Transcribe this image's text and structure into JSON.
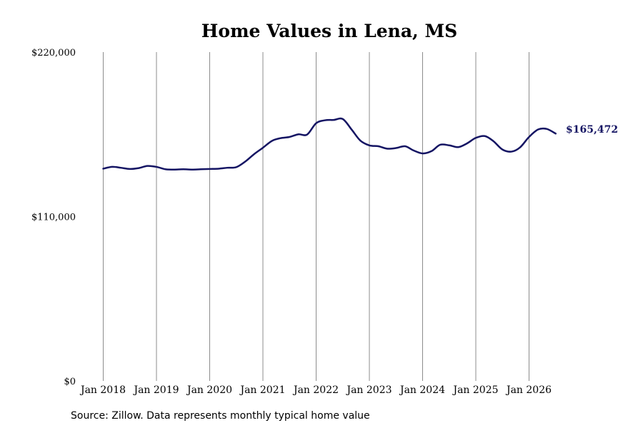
{
  "chart_data": {
    "type": "line",
    "title": "Home Values in Lena, MS",
    "xlabel": "",
    "ylabel": "",
    "ylim": [
      0,
      220000
    ],
    "y_ticks": [
      {
        "value": 0,
        "label": "$0"
      },
      {
        "value": 110000,
        "label": "$110,000"
      },
      {
        "value": 220000,
        "label": "$220,000"
      }
    ],
    "x_ticks": [
      {
        "value": 2018.0,
        "label": "Jan 2018"
      },
      {
        "value": 2019.0,
        "label": "Jan 2019"
      },
      {
        "value": 2020.0,
        "label": "Jan 2020"
      },
      {
        "value": 2021.0,
        "label": "Jan 2021"
      },
      {
        "value": 2022.0,
        "label": "Jan 2022"
      },
      {
        "value": 2023.0,
        "label": "Jan 2023"
      },
      {
        "value": 2024.0,
        "label": "Jan 2024"
      },
      {
        "value": 2025.0,
        "label": "Jan 2025"
      },
      {
        "value": 2026.0,
        "label": "Jan 2026"
      }
    ],
    "xlim": [
      2018.0,
      2026.5
    ],
    "grid": {
      "vertical": true,
      "horizontal": false
    },
    "line_color": "#141463",
    "end_label": "$165,472",
    "series": [
      {
        "values": [
          [
            2018.0,
            142000
          ],
          [
            2018.17,
            143200
          ],
          [
            2018.33,
            142600
          ],
          [
            2018.5,
            141800
          ],
          [
            2018.67,
            142400
          ],
          [
            2018.83,
            143800
          ],
          [
            2019.0,
            143200
          ],
          [
            2019.17,
            141600
          ],
          [
            2019.33,
            141400
          ],
          [
            2019.5,
            141600
          ],
          [
            2019.67,
            141400
          ],
          [
            2019.83,
            141600
          ],
          [
            2020.0,
            141800
          ],
          [
            2020.17,
            142000
          ],
          [
            2020.33,
            142600
          ],
          [
            2020.5,
            143000
          ],
          [
            2020.67,
            146800
          ],
          [
            2020.83,
            151600
          ],
          [
            2021.0,
            156000
          ],
          [
            2021.17,
            160600
          ],
          [
            2021.33,
            162400
          ],
          [
            2021.5,
            163200
          ],
          [
            2021.67,
            165000
          ],
          [
            2021.83,
            164800
          ],
          [
            2022.0,
            172400
          ],
          [
            2022.17,
            174400
          ],
          [
            2022.33,
            174600
          ],
          [
            2022.5,
            175200
          ],
          [
            2022.67,
            168000
          ],
          [
            2022.83,
            160800
          ],
          [
            2023.0,
            157600
          ],
          [
            2023.17,
            157000
          ],
          [
            2023.33,
            155400
          ],
          [
            2023.5,
            155800
          ],
          [
            2023.67,
            157000
          ],
          [
            2023.83,
            154200
          ],
          [
            2024.0,
            152200
          ],
          [
            2024.17,
            153800
          ],
          [
            2024.33,
            158000
          ],
          [
            2024.5,
            157600
          ],
          [
            2024.67,
            156400
          ],
          [
            2024.83,
            158800
          ],
          [
            2025.0,
            162600
          ],
          [
            2025.17,
            163800
          ],
          [
            2025.33,
            160400
          ],
          [
            2025.5,
            154800
          ],
          [
            2025.67,
            153400
          ],
          [
            2025.83,
            156200
          ],
          [
            2026.0,
            163200
          ],
          [
            2026.17,
            168200
          ],
          [
            2026.33,
            168600
          ],
          [
            2026.5,
            165472
          ]
        ]
      }
    ]
  },
  "footer": {
    "source": "Source: Zillow. Data represents monthly typical home value"
  }
}
